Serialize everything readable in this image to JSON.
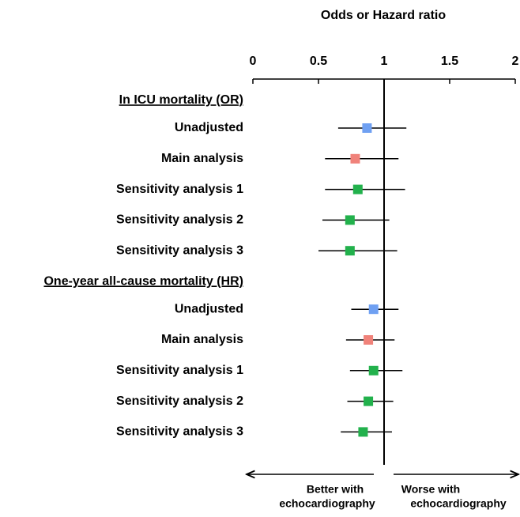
{
  "chart_data": {
    "type": "forest",
    "title": "Odds or Hazard ratio",
    "xlim": [
      0,
      2
    ],
    "xticks": [
      0,
      0.5,
      1,
      1.5,
      2
    ],
    "reference_line": 1,
    "groups": [
      {
        "name": "In ICU mortality (OR)",
        "categories": [
          "Unadjusted",
          "Main analysis",
          "Sensitivity analysis 1",
          "Sensitivity analysis 2",
          "Sensitivity analysis 3"
        ],
        "values": [
          0.87,
          0.78,
          0.8,
          0.74,
          0.74
        ],
        "lower": [
          0.65,
          0.55,
          0.55,
          0.53,
          0.5
        ],
        "upper": [
          1.17,
          1.11,
          1.16,
          1.04,
          1.1
        ],
        "colors": [
          "#6fa0f2",
          "#f0827a",
          "#22b14c",
          "#22b14c",
          "#22b14c"
        ]
      },
      {
        "name": "One-year all-cause mortality (HR)",
        "categories": [
          "Unadjusted",
          "Main analysis",
          "Sensitivity analysis 1",
          "Sensitivity analysis 2",
          "Sensitivity analysis 3"
        ],
        "values": [
          0.92,
          0.88,
          0.92,
          0.88,
          0.84
        ],
        "lower": [
          0.75,
          0.71,
          0.74,
          0.72,
          0.67
        ],
        "upper": [
          1.11,
          1.08,
          1.14,
          1.07,
          1.06
        ],
        "colors": [
          "#6fa0f2",
          "#f0827a",
          "#22b14c",
          "#22b14c",
          "#22b14c"
        ]
      }
    ],
    "left_note": [
      "Better with",
      "echocardiography"
    ],
    "right_note": [
      "Worse with",
      "echocardiography"
    ]
  }
}
